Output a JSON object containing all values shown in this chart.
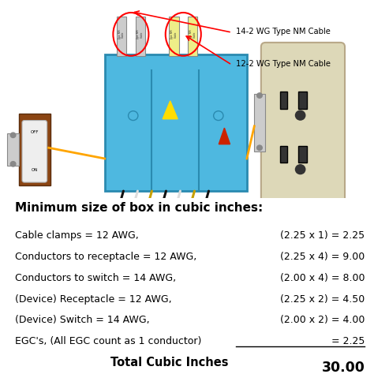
{
  "title": "Minimum size of box in cubic inches:",
  "rows": [
    {
      "label": "Cable clamps = 12 AWG,",
      "formula": "(2.25 x 1) = 2.25"
    },
    {
      "label": "Conductors to receptacle = 12 AWG,",
      "formula": "(2.25 x 4) = 9.00"
    },
    {
      "label": "Conductors to switch = 14 AWG,",
      "formula": "(2.00 x 4) = 8.00"
    },
    {
      "label": "(Device) Receptacle = 12 AWG,",
      "formula": "(2.25 x 2) = 4.50"
    },
    {
      "label": "(Device) Switch = 14 AWG,",
      "formula": "(2.00 x 2) = 4.00"
    },
    {
      "label": "EGC's, (All EGC count as 1 conductor)",
      "formula": "= 2.25"
    }
  ],
  "total_label": "Total Cubic Inches",
  "total_value": "30.00",
  "label1": "14-2 WG Type NM Cable",
  "label2": "12-2 WG Type NM Cable",
  "bg_color": "#ffffff",
  "title_color": "#000000",
  "text_color": "#000000",
  "font_size_title": 11,
  "font_size_row": 9.0,
  "font_size_total": 10.5
}
